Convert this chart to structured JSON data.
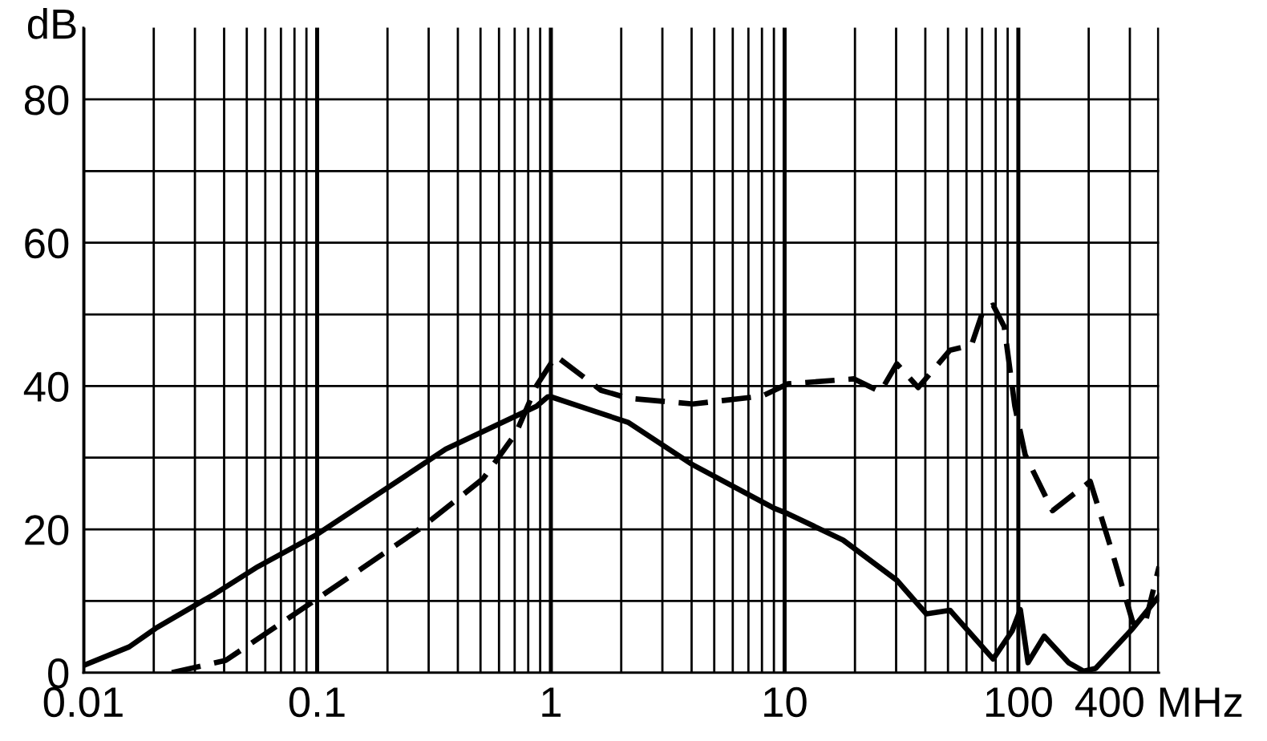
{
  "chart_data": {
    "type": "line",
    "ylabel": "dB",
    "log": "x",
    "grid": true,
    "xlim": [
      0.01,
      400
    ],
    "ylim": [
      0,
      90
    ],
    "xticks": [
      0.01,
      {
        "value": 0.02,
        "label": null
      },
      {
        "value": 0.03,
        "label": null
      },
      {
        "value": 0.04,
        "label": null
      },
      {
        "value": 0.05,
        "label": null
      },
      {
        "value": 0.06,
        "label": null
      },
      {
        "value": 0.07,
        "label": null
      },
      {
        "value": 0.08,
        "label": null
      },
      {
        "value": 0.09,
        "label": null
      },
      0.1,
      {
        "value": 0.2,
        "label": null
      },
      {
        "value": 0.3,
        "label": null
      },
      {
        "value": 0.4,
        "label": null
      },
      {
        "value": 0.5,
        "label": null
      },
      {
        "value": 0.6,
        "label": null
      },
      {
        "value": 0.7,
        "label": null
      },
      {
        "value": 0.8,
        "label": null
      },
      {
        "value": 0.9,
        "label": null
      },
      1,
      {
        "value": 2,
        "label": null
      },
      {
        "value": 3,
        "label": null
      },
      {
        "value": 4,
        "label": null
      },
      {
        "value": 5,
        "label": null
      },
      {
        "value": 6,
        "label": null
      },
      {
        "value": 7,
        "label": null
      },
      {
        "value": 8,
        "label": null
      },
      {
        "value": 9,
        "label": null
      },
      10,
      {
        "value": 20,
        "label": null
      },
      {
        "value": 30,
        "label": null
      },
      {
        "value": 40,
        "label": null
      },
      {
        "value": 50,
        "label": null
      },
      {
        "value": 60,
        "label": null
      },
      {
        "value": 70,
        "label": null
      },
      {
        "value": 80,
        "label": null
      },
      {
        "value": 90,
        "label": null
      },
      100,
      {
        "value": 200,
        "label": null
      },
      {
        "value": 300,
        "label": null
      },
      {
        "value": 400,
        "label": "400 MHz"
      }
    ],
    "yticks": [
      0,
      {
        "value": 10,
        "label": null
      },
      20,
      {
        "value": 30,
        "label": null
      },
      40,
      {
        "value": 50,
        "label": null
      },
      60,
      {
        "value": 70,
        "label": null
      },
      80
    ],
    "series": [
      {
        "color": "#000000",
        "line_style": "solid",
        "x": [
          0.01,
          0.0157,
          0.0204,
          0.0365,
          0.0558,
          0.1,
          0.355,
          0.87,
          0.97,
          1,
          2.15,
          4.05,
          8.95,
          10.3,
          17.8,
          30.2,
          40.4,
          51,
          78,
          94,
          102,
          110,
          129,
          164,
          190,
          214,
          309,
          400
        ],
        "values": [
          1.0,
          3.6,
          6.2,
          11.0,
          14.8,
          19.3,
          31.2,
          37.2,
          38.5,
          38.5,
          34.9,
          29.0,
          23.0,
          22.2,
          18.5,
          12.9,
          8.2,
          8.7,
          1.9,
          5.8,
          8.8,
          1.4,
          5.1,
          1.4,
          0.2,
          0.6,
          6.2,
          10.7
        ]
      },
      {
        "color": "#000000",
        "line_style": "dashed",
        "x": [
          0.0239,
          0.0406,
          0.1,
          0.273,
          0.514,
          0.708,
          0.87,
          1.05,
          1.64,
          2.15,
          4.05,
          8.0,
          10.3,
          19.8,
          25.7,
          30.2,
          37.3,
          51,
          63,
          70.8,
          78,
          87,
          96.6,
          107,
          140,
          203,
          251,
          309,
          347,
          400
        ],
        "values": [
          0,
          1.7,
          10.3,
          20.0,
          27.1,
          33.4,
          40.1,
          44.2,
          39.4,
          38.3,
          37.5,
          38.6,
          40.3,
          41.0,
          39.2,
          43.1,
          39.8,
          45.0,
          45.7,
          50.6,
          51.3,
          48.3,
          37.2,
          30.4,
          22.6,
          26.7,
          17.0,
          7.0,
          6.6,
          14.8
        ]
      }
    ]
  }
}
